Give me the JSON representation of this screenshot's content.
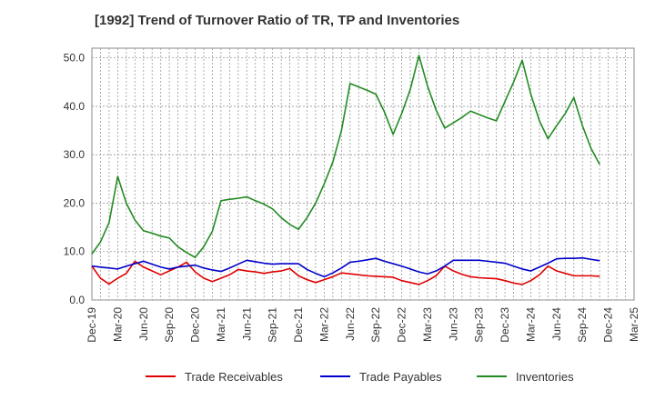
{
  "chart_data": {
    "type": "line",
    "title": "[1992]  Trend of Turnover Ratio of TR, TP and Inventories",
    "xlabel": "",
    "ylabel": "",
    "ylim": [
      0,
      52
    ],
    "yticks": [
      0,
      10,
      20,
      30,
      40,
      50
    ],
    "ytick_labels": [
      "0.0",
      "10.0",
      "20.0",
      "30.0",
      "40.0",
      "50.0"
    ],
    "xtick_labels": [
      "Dec-19",
      "Mar-20",
      "Jun-20",
      "Sep-20",
      "Dec-20",
      "Mar-21",
      "Jun-21",
      "Sep-21",
      "Dec-21",
      "Mar-22",
      "Jun-22",
      "Sep-22",
      "Dec-22",
      "Mar-23",
      "Jun-23",
      "Sep-23",
      "Dec-23",
      "Mar-24",
      "Jun-24",
      "Sep-24",
      "Dec-24",
      "Mar-25"
    ],
    "grid": true,
    "legend_position": "bottom",
    "series": [
      {
        "name": "Trade Receivables",
        "color": "#e00000",
        "values": [
          7.0,
          4.5,
          3.3,
          4.5,
          5.5,
          8.0,
          6.8,
          6.0,
          5.2,
          6.0,
          6.8,
          7.8,
          5.8,
          4.5,
          3.8,
          4.5,
          5.2,
          6.3,
          6.0,
          5.8,
          5.5,
          5.8,
          6.0,
          6.5,
          5.0,
          4.2,
          3.6,
          4.2,
          4.8,
          5.6,
          5.4,
          5.2,
          5.0,
          4.9,
          4.8,
          4.7,
          4.0,
          3.6,
          3.2,
          4.0,
          5.0,
          7.0,
          6.0,
          5.3,
          4.8,
          4.6,
          4.5,
          4.4,
          4.0,
          3.5,
          3.2,
          4.0,
          5.2,
          7.0,
          6.0,
          5.5,
          5.0,
          5.0,
          5.0,
          4.9
        ]
      },
      {
        "name": "Trade Payables",
        "color": "#0000cc",
        "values": [
          7.0,
          6.8,
          6.6,
          6.4,
          7.0,
          7.5,
          8.0,
          7.4,
          6.8,
          6.4,
          6.8,
          7.0,
          7.2,
          6.6,
          6.2,
          5.9,
          6.6,
          7.4,
          8.2,
          7.9,
          7.6,
          7.4,
          7.5,
          7.5,
          7.5,
          6.3,
          5.5,
          4.8,
          5.6,
          6.6,
          7.8,
          8.0,
          8.3,
          8.6,
          8.0,
          7.5,
          7.0,
          6.4,
          5.8,
          5.4,
          6.0,
          7.0,
          8.2,
          8.2,
          8.2,
          8.2,
          8.0,
          7.8,
          7.6,
          7.0,
          6.4,
          6.0,
          6.8,
          7.6,
          8.5,
          8.6,
          8.6,
          8.7,
          8.4,
          8.1
        ]
      },
      {
        "name": "Inventories",
        "color": "#228b22",
        "values": [
          9.5,
          12.0,
          16.0,
          25.5,
          20.0,
          16.5,
          14.3,
          13.8,
          13.2,
          12.8,
          11.0,
          9.8,
          8.8,
          11.0,
          14.2,
          20.5,
          20.8,
          21.0,
          21.3,
          20.5,
          19.8,
          18.8,
          17.0,
          15.6,
          14.6,
          17.0,
          20.0,
          24.0,
          28.5,
          35.0,
          44.7,
          44.0,
          43.3,
          42.5,
          38.8,
          34.2,
          38.5,
          43.5,
          50.5,
          44.2,
          39.2,
          35.5,
          36.6,
          37.7,
          39.0,
          38.3,
          37.6,
          37.0,
          41.0,
          45.0,
          49.5,
          42.5,
          37.0,
          33.3,
          36.0,
          38.5,
          41.8,
          36.0,
          31.3,
          28.0
        ]
      }
    ]
  }
}
